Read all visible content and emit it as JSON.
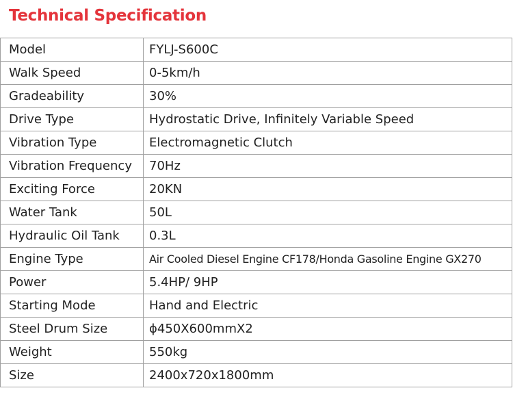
{
  "title": "Technical Specification",
  "accent_color": "#e4343b",
  "rows": [
    {
      "label": "Model",
      "value": "FYLJ-S600C"
    },
    {
      "label": "Walk Speed",
      "value": "0-5km/h"
    },
    {
      "label": "Gradeability",
      "value": "30%"
    },
    {
      "label": "Drive Type",
      "value": "Hydrostatic Drive, Infinitely Variable Speed"
    },
    {
      "label": "Vibration Type",
      "value": "Electromagnetic Clutch"
    },
    {
      "label": "Vibration Frequency",
      "value": "70Hz"
    },
    {
      "label": "Exciting Force",
      "value": "20KN"
    },
    {
      "label": "Water Tank",
      "value": "50L"
    },
    {
      "label": "Hydraulic Oil Tank",
      "value": "0.3L"
    },
    {
      "label": "Engine Type",
      "value": "Air Cooled Diesel Engine CF178/Honda Gasoline Engine GX270"
    },
    {
      "label": "Power",
      "value": "5.4HP/ 9HP"
    },
    {
      "label": "Starting Mode",
      "value": "Hand and Electric"
    },
    {
      "label": "Steel Drum Size",
      "value": "ϕ450X600mmX2"
    },
    {
      "label": "Weight",
      "value": "550kg"
    },
    {
      "label": "Size",
      "value": "2400x720x1800mm"
    }
  ]
}
